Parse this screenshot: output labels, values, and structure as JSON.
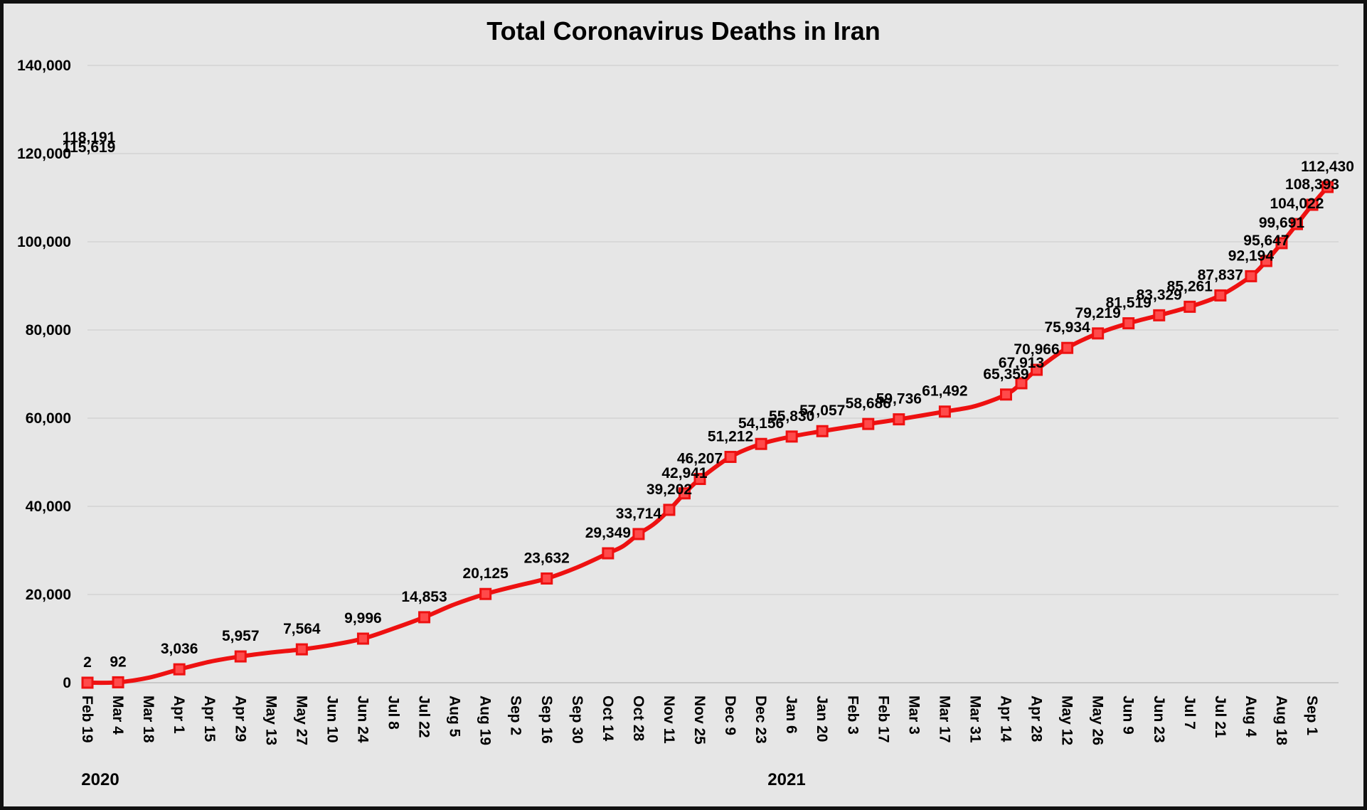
{
  "chart_data": {
    "type": "line",
    "title": "Total Coronavirus Deaths in Iran",
    "xlabel": "",
    "ylabel": "",
    "ylim": [
      0,
      140000
    ],
    "y_ticks": [
      "0",
      "20,000",
      "40,000",
      "60,000",
      "80,000",
      "100,000",
      "120,000",
      "140,000"
    ],
    "grid": true,
    "legend": "none",
    "line_color": "#ee1111",
    "marker": "square",
    "x_tick_labels": [
      "Feb 19",
      "Mar 4",
      "Mar 18",
      "Apr 1",
      "Apr 15",
      "Apr 29",
      "May 13",
      "May 27",
      "Jun 10",
      "Jun 24",
      "Jul 8",
      "Jul 22",
      "Aug 5",
      "Aug 19",
      "Sep 2",
      "Sep 16",
      "Sep 30",
      "Oct 14",
      "Oct 28",
      "Nov 11",
      "Nov 25",
      "Dec 9",
      "Dec 23",
      "Jan 6",
      "Jan 20",
      "Feb 3",
      "Feb 17",
      "Mar 3",
      "Mar 17",
      "Mar 31",
      "Apr 14",
      "Apr 28",
      "May 12",
      "May 26",
      "Jun 9",
      "Jun 23",
      "Jul 7",
      "Jul 21",
      "Aug 4",
      "Aug 18",
      "Sep 1"
    ],
    "year_labels": [
      "2020",
      "2021"
    ],
    "series": [
      {
        "points": [
          {
            "x": "2020-02-19",
            "y": 2,
            "label": "2"
          },
          {
            "x": "2020-03-04",
            "y": 92,
            "label": "92"
          },
          {
            "x": "2020-03-18",
            "y": 1135
          },
          {
            "x": "2020-04-01",
            "y": 3036,
            "label": "3,036"
          },
          {
            "x": "2020-04-15",
            "y": 4777
          },
          {
            "x": "2020-04-29",
            "y": 5957,
            "label": "5,957"
          },
          {
            "x": "2020-05-13",
            "y": 6854
          },
          {
            "x": "2020-05-27",
            "y": 7564,
            "label": "7,564"
          },
          {
            "x": "2020-06-10",
            "y": 8584
          },
          {
            "x": "2020-06-24",
            "y": 9996,
            "label": "9,996"
          },
          {
            "x": "2020-07-08",
            "y": 12305
          },
          {
            "x": "2020-07-22",
            "y": 14853,
            "label": "14,853"
          },
          {
            "x": "2020-08-05",
            "y": 17802
          },
          {
            "x": "2020-08-19",
            "y": 20125,
            "label": "20,125"
          },
          {
            "x": "2020-09-02",
            "y": 21926
          },
          {
            "x": "2020-09-16",
            "y": 23632,
            "label": "23,632"
          },
          {
            "x": "2020-09-30",
            "y": 26169
          },
          {
            "x": "2020-10-14",
            "y": 29349,
            "label": "29,349"
          },
          {
            "x": "2020-10-21",
            "y": 31000
          },
          {
            "x": "2020-10-28",
            "y": 33714,
            "label": "33,714"
          },
          {
            "x": "2020-11-04",
            "y": 36000
          },
          {
            "x": "2020-11-11",
            "y": 39202,
            "label": "39,202"
          },
          {
            "x": "2020-11-18",
            "y": 42941,
            "label": "42,941"
          },
          {
            "x": "2020-11-25",
            "y": 46207,
            "label": "46,207"
          },
          {
            "x": "2020-12-09",
            "y": 51212,
            "label": "51,212"
          },
          {
            "x": "2020-12-23",
            "y": 54156,
            "label": "54,156"
          },
          {
            "x": "2021-01-06",
            "y": 55830,
            "label": "55,830"
          },
          {
            "x": "2021-01-20",
            "y": 57057,
            "label": "57,057"
          },
          {
            "x": "2021-02-10",
            "y": 58686,
            "label": "58,686"
          },
          {
            "x": "2021-02-24",
            "y": 59736,
            "label": "59,736"
          },
          {
            "x": "2021-03-17",
            "y": 61492,
            "label": "61,492"
          },
          {
            "x": "2021-03-31",
            "y": 62750
          },
          {
            "x": "2021-04-14",
            "y": 65359,
            "label": "65,359"
          },
          {
            "x": "2021-04-21",
            "y": 67913,
            "label": "67,913"
          },
          {
            "x": "2021-04-28",
            "y": 70966,
            "label": "70,966"
          },
          {
            "x": "2021-05-12",
            "y": 75934,
            "label": "75,934"
          },
          {
            "x": "2021-05-26",
            "y": 79219,
            "label": "79,219"
          },
          {
            "x": "2021-06-09",
            "y": 81519,
            "label": "81,519"
          },
          {
            "x": "2021-06-23",
            "y": 83329,
            "label": "83,329"
          },
          {
            "x": "2021-07-07",
            "y": 85261,
            "label": "85,261"
          },
          {
            "x": "2021-07-21",
            "y": 87837,
            "label": "87,837"
          },
          {
            "x": "2021-08-04",
            "y": 92194,
            "label": "92,194"
          },
          {
            "x": "2021-08-11",
            "y": 95647,
            "label": "95,647"
          },
          {
            "x": "2021-08-18",
            "y": 99691,
            "label": "99,691"
          },
          {
            "x": "2021-08-25",
            "y": 104022,
            "label": "104,022"
          },
          {
            "x": "2021-09-01",
            "y": 108393,
            "label": "108,393"
          },
          {
            "x": "2021-09-08",
            "y": 112430,
            "label": "112,430"
          }
        ]
      }
    ],
    "extra_labels": [
      "118,191",
      "115,619"
    ]
  }
}
